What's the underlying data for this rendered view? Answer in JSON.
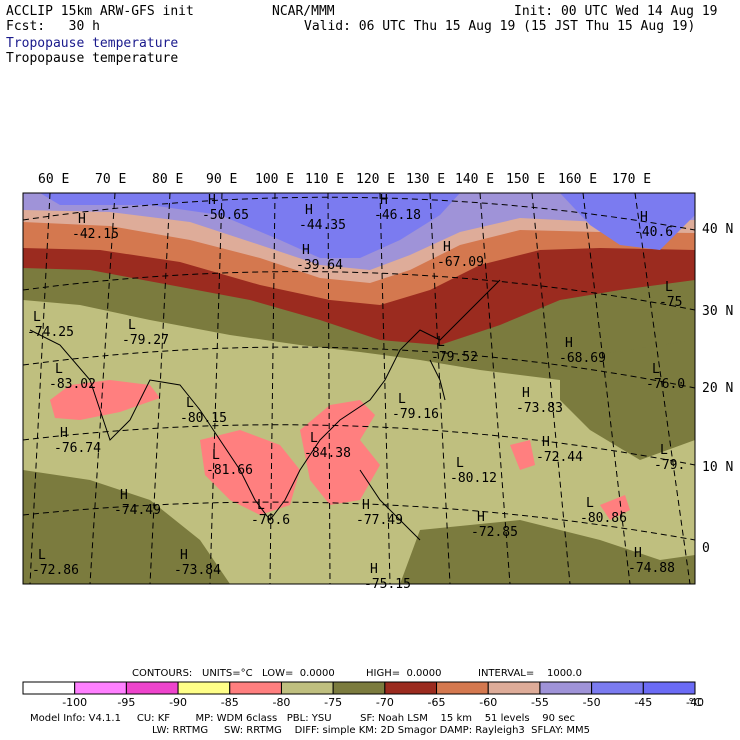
{
  "header": {
    "model": "ACCLIP 15km ARW-GFS init",
    "org": "NCAR/MMM",
    "init": "Init: 00 UTC Wed 14 Aug 19",
    "fcst": "Fcst:   30 h",
    "valid": "Valid: 06 UTC Thu 15 Aug 19 (15 JST Thu 15 Aug 19)",
    "field1": "Tropopause temperature",
    "field2": "Tropopause temperature"
  },
  "lon_labels": [
    "60 E",
    "70 E",
    "80 E",
    "90 E",
    "100 E",
    "110 E",
    "120 E",
    "130 E",
    "140 E",
    "150 E",
    "160 E",
    "170 E"
  ],
  "lat_labels": [
    "40 N",
    "30 N",
    "20 N",
    "10 N",
    "0"
  ],
  "extrema": [
    {
      "type": "H",
      "value": "-42.15"
    },
    {
      "type": "H",
      "value": "-50.65"
    },
    {
      "type": "H",
      "value": "-44.35"
    },
    {
      "type": "H",
      "value": "-46.18"
    },
    {
      "type": "H",
      "value": "-39.64"
    },
    {
      "type": "H",
      "value": "-67.09"
    },
    {
      "type": "H",
      "value": "-40.6"
    },
    {
      "type": "L",
      "value": "-74.25"
    },
    {
      "type": "L",
      "value": "-79.27"
    },
    {
      "type": "L",
      "value": "-83.02"
    },
    {
      "type": "L",
      "value": "-79.52"
    },
    {
      "type": "H",
      "value": "-68.69"
    },
    {
      "type": "L",
      "value": "-75"
    },
    {
      "type": "L",
      "value": "-76.0"
    },
    {
      "type": "L",
      "value": "-80.15"
    },
    {
      "type": "L",
      "value": "-79.16"
    },
    {
      "type": "H",
      "value": "-73.83"
    },
    {
      "type": "H",
      "value": "-76.74"
    },
    {
      "type": "L",
      "value": "-84.38"
    },
    {
      "type": "H",
      "value": "-72.44"
    },
    {
      "type": "L",
      "value": "-79."
    },
    {
      "type": "L",
      "value": "-81.66"
    },
    {
      "type": "L",
      "value": "-80.12"
    },
    {
      "type": "H",
      "value": "-74.49"
    },
    {
      "type": "L",
      "value": "-76.6"
    },
    {
      "type": "H",
      "value": "-77.49"
    },
    {
      "type": "H",
      "value": "-72.85"
    },
    {
      "type": "L",
      "value": "-80.86"
    },
    {
      "type": "L",
      "value": "-72.86"
    },
    {
      "type": "H",
      "value": "-73.84"
    },
    {
      "type": "H",
      "value": "-75.15"
    },
    {
      "type": "H",
      "value": "-74.88"
    }
  ],
  "colors": {
    "band_m70_m65": "#9b2b1f",
    "band_m75_m70": "#7b7b3e",
    "band_m80_m75": "#bfbf7f",
    "band_m85_m80": "#ff7f7f",
    "band_m65_m60": "#d4784f",
    "band_m60_m55": "#deac99",
    "band_m55_m50": "#9f93d8",
    "band_m50_m40": "#7b7bf0"
  },
  "contour_info": {
    "contours": "CONTOURS:",
    "units": "UNITS=°C",
    "low": "LOW=  0.0000",
    "high": "HIGH=  0.0000",
    "interval": "INTERVAL=    1000.0"
  },
  "colorbar": {
    "colors": [
      "#ffffff",
      "#ff80ff",
      "#ee44cc",
      "#ffff88",
      "#ff7f7f",
      "#bfbf7f",
      "#7b7b3e",
      "#9b2b1f",
      "#d4784f",
      "#deac99",
      "#9f93d8",
      "#7b7bf0",
      "#6b6bf5"
    ],
    "labels": [
      "-100",
      "-95",
      "-90",
      "-85",
      "-80",
      "-75",
      "-70",
      "-65",
      "-60",
      "-55",
      "-50",
      "-45",
      "-40"
    ],
    "unit": "°C"
  },
  "footer": {
    "line1": "Model Info: V4.1.1     CU: KF        MP: WDM 6class   PBL: YSU         SF: Noah LSM    15 km    51 levels    90 sec",
    "line2": "LW: RRTMG     SW: RRTMG    DIFF: simple KM: 2D Smagor DAMP: Rayleigh3  SFLAY: MM5"
  }
}
